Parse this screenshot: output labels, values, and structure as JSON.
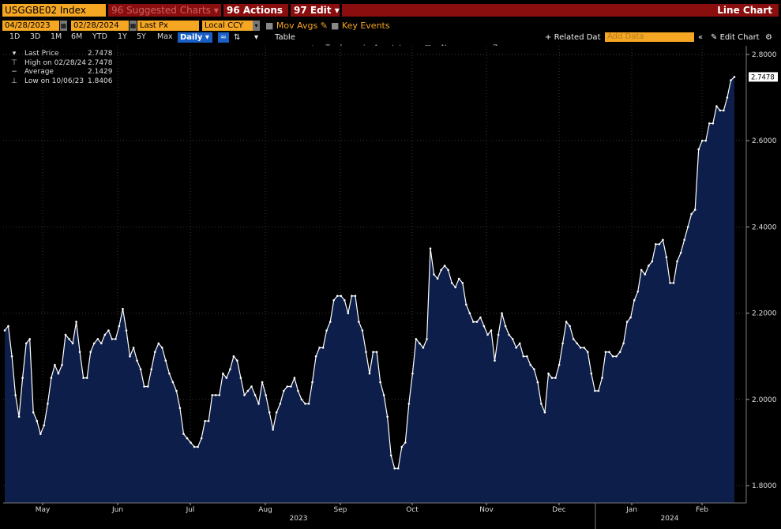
{
  "toolbar": {
    "ticker": "USGGBE02 Index",
    "suggested_label": "Suggested Charts",
    "actions_label": "Actions",
    "edit_label": "Edit",
    "view_title": "Line Chart",
    "start_date": "04/28/2023",
    "end_date": "02/28/2024",
    "field": "Last Px",
    "currency": "Local CCY",
    "mov_avgs": "Mov Avgs",
    "key_events": "Key Events",
    "ranges": [
      "1D",
      "3D",
      "1M",
      "6M",
      "YTD",
      "1Y",
      "5Y",
      "Max"
    ],
    "period": "Daily",
    "table_label": "Table",
    "related_data": "Related Dat",
    "add_data_placeholder": "Add Data",
    "edit_chart": "Edit Chart"
  },
  "plot_tools": [
    "Track",
    "Annotate",
    "News",
    "Zoom"
  ],
  "legend": [
    {
      "label": "Last Price",
      "value": "2.7478"
    },
    {
      "label": "High on 02/28/24",
      "value": "2.7478"
    },
    {
      "label": "Average",
      "value": "2.1429"
    },
    {
      "label": "Low on 10/06/23",
      "value": "1.8406"
    }
  ],
  "chart_data": {
    "type": "area",
    "ylim": [
      1.76,
      2.82
    ],
    "yticks": [
      "1.8000",
      "2.0000",
      "2.2000",
      "2.4000",
      "2.6000",
      "2.8000"
    ],
    "last_label": "2.7478",
    "month_labels": [
      "May",
      "Jun",
      "Jul",
      "Aug",
      "Sep",
      "Oct",
      "Nov",
      "Dec",
      "Jan",
      "Feb"
    ],
    "year_labels": [
      "2023",
      "2024"
    ],
    "values": [
      2.16,
      2.17,
      2.1,
      2.01,
      1.96,
      2.05,
      2.13,
      2.14,
      1.97,
      1.95,
      1.92,
      1.94,
      1.99,
      2.05,
      2.08,
      2.06,
      2.08,
      2.15,
      2.14,
      2.13,
      2.18,
      2.11,
      2.05,
      2.05,
      2.11,
      2.13,
      2.14,
      2.13,
      2.15,
      2.16,
      2.14,
      2.14,
      2.17,
      2.21,
      2.16,
      2.1,
      2.12,
      2.09,
      2.07,
      2.03,
      2.03,
      2.07,
      2.11,
      2.13,
      2.12,
      2.09,
      2.06,
      2.04,
      2.02,
      1.98,
      1.92,
      1.91,
      1.9,
      1.89,
      1.89,
      1.91,
      1.95,
      1.95,
      2.01,
      2.01,
      2.01,
      2.06,
      2.05,
      2.07,
      2.1,
      2.09,
      2.05,
      2.01,
      2.02,
      2.03,
      2.01,
      1.99,
      2.04,
      2.01,
      1.97,
      1.93,
      1.97,
      1.99,
      2.02,
      2.03,
      2.03,
      2.05,
      2.02,
      2.0,
      1.99,
      1.99,
      2.04,
      2.1,
      2.12,
      2.12,
      2.16,
      2.18,
      2.23,
      2.24,
      2.24,
      2.23,
      2.2,
      2.24,
      2.24,
      2.18,
      2.16,
      2.11,
      2.06,
      2.11,
      2.11,
      2.04,
      2.01,
      1.96,
      1.87,
      1.84,
      1.84,
      1.89,
      1.9,
      1.99,
      2.06,
      2.14,
      2.13,
      2.12,
      2.14,
      2.35,
      2.29,
      2.28,
      2.3,
      2.31,
      2.3,
      2.27,
      2.26,
      2.28,
      2.27,
      2.22,
      2.2,
      2.18,
      2.18,
      2.19,
      2.17,
      2.15,
      2.16,
      2.09,
      2.15,
      2.2,
      2.17,
      2.15,
      2.14,
      2.12,
      2.13,
      2.1,
      2.1,
      2.08,
      2.07,
      2.04,
      1.99,
      1.97,
      2.06,
      2.05,
      2.05,
      2.08,
      2.13,
      2.18,
      2.17,
      2.14,
      2.13,
      2.12,
      2.12,
      2.11,
      2.06,
      2.02,
      2.02,
      2.05,
      2.11,
      2.11,
      2.1,
      2.1,
      2.11,
      2.13,
      2.18,
      2.19,
      2.23,
      2.25,
      2.3,
      2.29,
      2.31,
      2.32,
      2.36,
      2.36,
      2.37,
      2.33,
      2.27,
      2.27,
      2.32,
      2.34,
      2.37,
      2.4,
      2.43,
      2.44,
      2.58,
      2.6,
      2.6,
      2.64,
      2.64,
      2.68,
      2.67,
      2.67,
      2.7,
      2.74,
      2.7478
    ]
  },
  "colors": {
    "area_fill": "#0d1e4a",
    "line": "#ffffff",
    "grid": "#3a3a3a",
    "accent": "#f5a623",
    "menu": "#8b0e0e"
  }
}
